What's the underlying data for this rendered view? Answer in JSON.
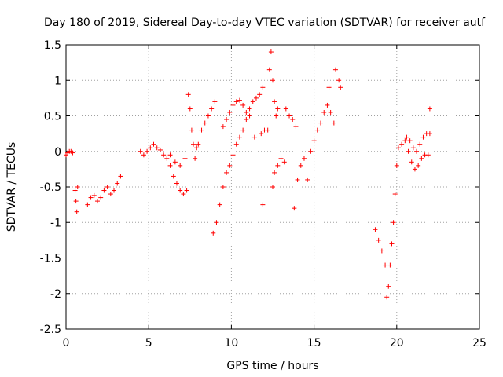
{
  "chart_data": {
    "type": "scatter",
    "title": "Day 180 of 2019, Sidereal Day-to-day VTEC variation (SDTVAR) for receiver autf",
    "xlabel": "GPS time / hours",
    "ylabel": "SDTVAR / TECUs",
    "xlim": [
      0,
      25
    ],
    "ylim": [
      -2.5,
      1.5
    ],
    "xticks": [
      "0",
      "5",
      "10",
      "15",
      "20",
      "25"
    ],
    "yticks": [
      "-2.5",
      "-2",
      "-1.5",
      "-1",
      "-0.5",
      "0",
      "0.5",
      "1",
      "1.5"
    ],
    "grid": true,
    "marker": "+",
    "color": "#ff0000",
    "series": [
      {
        "points": [
          [
            0.0,
            -0.05
          ],
          [
            0.1,
            -0.02
          ],
          [
            0.2,
            0.0
          ],
          [
            0.3,
            0.0
          ],
          [
            0.4,
            -0.02
          ],
          [
            0.55,
            -0.55
          ],
          [
            0.6,
            -0.7
          ],
          [
            0.65,
            -0.85
          ],
          [
            0.7,
            -0.5
          ],
          [
            1.3,
            -0.75
          ],
          [
            1.5,
            -0.65
          ],
          [
            1.7,
            -0.62
          ],
          [
            1.9,
            -0.7
          ],
          [
            2.1,
            -0.65
          ],
          [
            2.3,
            -0.55
          ],
          [
            2.5,
            -0.5
          ],
          [
            2.7,
            -0.6
          ],
          [
            2.9,
            -0.55
          ],
          [
            3.1,
            -0.45
          ],
          [
            3.3,
            -0.35
          ],
          [
            4.5,
            0.0
          ],
          [
            4.7,
            -0.05
          ],
          [
            4.9,
            0.0
          ],
          [
            5.1,
            0.05
          ],
          [
            5.3,
            0.1
          ],
          [
            5.5,
            0.05
          ],
          [
            5.7,
            0.02
          ],
          [
            5.9,
            -0.05
          ],
          [
            6.1,
            -0.1
          ],
          [
            6.3,
            -0.2
          ],
          [
            6.5,
            -0.35
          ],
          [
            6.7,
            -0.45
          ],
          [
            6.9,
            -0.55
          ],
          [
            7.1,
            -0.6
          ],
          [
            7.3,
            -0.55
          ],
          [
            6.3,
            -0.05
          ],
          [
            6.6,
            -0.15
          ],
          [
            6.9,
            -0.2
          ],
          [
            7.2,
            -0.1
          ],
          [
            7.4,
            0.8
          ],
          [
            7.5,
            0.6
          ],
          [
            7.6,
            0.3
          ],
          [
            7.7,
            0.1
          ],
          [
            7.8,
            -0.1
          ],
          [
            7.9,
            0.05
          ],
          [
            8.0,
            0.1
          ],
          [
            8.2,
            0.3
          ],
          [
            8.4,
            0.4
          ],
          [
            8.6,
            0.5
          ],
          [
            8.8,
            0.6
          ],
          [
            9.0,
            0.7
          ],
          [
            8.9,
            -1.15
          ],
          [
            9.1,
            -1.0
          ],
          [
            9.3,
            -0.75
          ],
          [
            9.5,
            -0.5
          ],
          [
            9.7,
            -0.3
          ],
          [
            9.9,
            -0.2
          ],
          [
            10.1,
            -0.05
          ],
          [
            10.3,
            0.1
          ],
          [
            10.5,
            0.2
          ],
          [
            10.7,
            0.3
          ],
          [
            10.9,
            0.45
          ],
          [
            11.1,
            0.6
          ],
          [
            11.3,
            0.7
          ],
          [
            11.5,
            0.75
          ],
          [
            11.7,
            0.8
          ],
          [
            11.9,
            0.9
          ],
          [
            9.5,
            0.35
          ],
          [
            9.7,
            0.45
          ],
          [
            9.9,
            0.55
          ],
          [
            10.1,
            0.65
          ],
          [
            10.3,
            0.7
          ],
          [
            10.5,
            0.72
          ],
          [
            10.7,
            0.65
          ],
          [
            10.9,
            0.55
          ],
          [
            11.1,
            0.5
          ],
          [
            11.4,
            0.2
          ],
          [
            11.8,
            0.25
          ],
          [
            12.0,
            0.3
          ],
          [
            12.2,
            0.3
          ],
          [
            11.9,
            -0.75
          ],
          [
            12.3,
            1.15
          ],
          [
            12.4,
            1.4
          ],
          [
            12.5,
            1.0
          ],
          [
            12.6,
            0.7
          ],
          [
            12.7,
            0.5
          ],
          [
            12.8,
            0.6
          ],
          [
            12.5,
            -0.5
          ],
          [
            12.6,
            -0.3
          ],
          [
            12.8,
            -0.2
          ],
          [
            13.0,
            -0.1
          ],
          [
            13.2,
            -0.15
          ],
          [
            13.3,
            0.6
          ],
          [
            13.5,
            0.5
          ],
          [
            13.7,
            0.45
          ],
          [
            13.9,
            0.35
          ],
          [
            13.8,
            -0.8
          ],
          [
            14.0,
            -0.4
          ],
          [
            14.2,
            -0.2
          ],
          [
            14.4,
            -0.1
          ],
          [
            14.6,
            -0.4
          ],
          [
            14.8,
            0.0
          ],
          [
            15.0,
            0.15
          ],
          [
            15.2,
            0.3
          ],
          [
            15.4,
            0.4
          ],
          [
            15.6,
            0.55
          ],
          [
            15.8,
            0.65
          ],
          [
            16.0,
            0.55
          ],
          [
            16.2,
            0.4
          ],
          [
            15.9,
            0.9
          ],
          [
            16.3,
            1.15
          ],
          [
            16.5,
            1.0
          ],
          [
            16.6,
            0.9
          ],
          [
            18.7,
            -1.1
          ],
          [
            18.9,
            -1.25
          ],
          [
            19.1,
            -1.4
          ],
          [
            19.3,
            -1.6
          ],
          [
            19.4,
            -2.05
          ],
          [
            19.5,
            -1.9
          ],
          [
            19.6,
            -1.6
          ],
          [
            19.7,
            -1.3
          ],
          [
            19.8,
            -1.0
          ],
          [
            19.9,
            -0.6
          ],
          [
            20.0,
            -0.2
          ],
          [
            20.1,
            0.05
          ],
          [
            20.3,
            0.1
          ],
          [
            20.5,
            0.15
          ],
          [
            20.7,
            0.0
          ],
          [
            20.9,
            -0.15
          ],
          [
            21.1,
            -0.25
          ],
          [
            21.3,
            -0.2
          ],
          [
            21.5,
            -0.1
          ],
          [
            21.7,
            -0.05
          ],
          [
            21.9,
            -0.05
          ],
          [
            20.6,
            0.2
          ],
          [
            20.8,
            0.15
          ],
          [
            21.0,
            0.05
          ],
          [
            21.2,
            0.0
          ],
          [
            21.4,
            0.1
          ],
          [
            21.6,
            0.2
          ],
          [
            21.8,
            0.25
          ],
          [
            22.0,
            0.25
          ],
          [
            22.0,
            0.6
          ]
        ]
      }
    ]
  }
}
